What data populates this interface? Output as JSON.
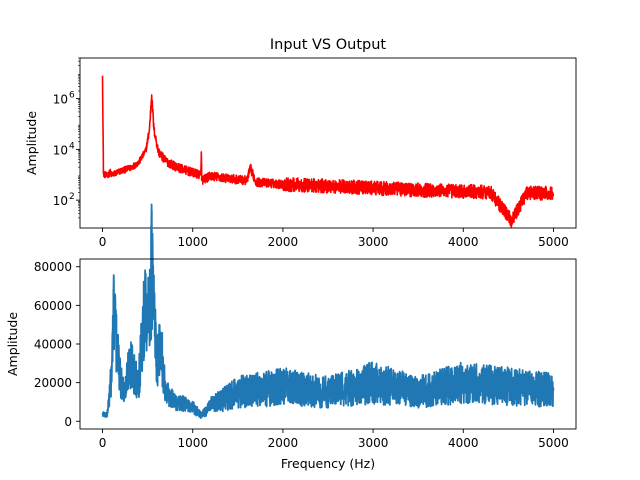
{
  "chart_data": [
    {
      "type": "line",
      "title": "Input VS Output",
      "xlabel": "",
      "ylabel": "Amplitude",
      "yscale": "log",
      "xlim": [
        -250,
        5250
      ],
      "ylim": [
        8,
        40000000
      ],
      "x_ticks": [
        "0",
        "1000",
        "2000",
        "3000",
        "4000",
        "5000"
      ],
      "y_ticks": [
        {
          "base": "10",
          "exp": "2",
          "value": 100
        },
        {
          "base": "10",
          "exp": "4",
          "value": 10000
        },
        {
          "base": "10",
          "exp": "6",
          "value": 1000000
        }
      ],
      "color": "#ff0000",
      "series": [
        {
          "values": [
            [
              0,
              8000000
            ],
            [
              10,
              1100
            ],
            [
              50,
              900
            ],
            [
              90,
              1300
            ],
            [
              100,
              1000
            ],
            [
              200,
              1400
            ],
            [
              300,
              1800
            ],
            [
              400,
              3000
            ],
            [
              480,
              9000
            ],
            [
              520,
              60000
            ],
            [
              545,
              1400000
            ],
            [
              570,
              60000
            ],
            [
              620,
              8000
            ],
            [
              700,
              3500
            ],
            [
              800,
              2200
            ],
            [
              900,
              1600
            ],
            [
              1000,
              1200
            ],
            [
              1090,
              1000
            ],
            [
              1095,
              8000
            ],
            [
              1100,
              600
            ],
            [
              1200,
              900
            ],
            [
              1400,
              700
            ],
            [
              1600,
              600
            ],
            [
              1640,
              1800
            ],
            [
              1700,
              520
            ],
            [
              2000,
              420
            ],
            [
              2300,
              380
            ],
            [
              2600,
              350
            ],
            [
              3000,
              300
            ],
            [
              3400,
              260
            ],
            [
              3700,
              240
            ],
            [
              4000,
              220
            ],
            [
              4300,
              210
            ],
            [
              4540,
              15
            ],
            [
              4700,
              200
            ],
            [
              5000,
              180
            ]
          ]
        }
      ],
      "grid": false
    },
    {
      "type": "line",
      "title": "",
      "xlabel": "Frequency (Hz)",
      "ylabel": "Amplitude",
      "xlim": [
        -250,
        5250
      ],
      "ylim": [
        -4000,
        84000
      ],
      "x_ticks": [
        "0",
        "1000",
        "2000",
        "3000",
        "4000",
        "5000"
      ],
      "y_ticks": [
        "0",
        "20000",
        "40000",
        "60000",
        "80000"
      ],
      "color": "#1f77b4",
      "series": [
        {
          "values": [
            [
              0,
              4000
            ],
            [
              50,
              3000
            ],
            [
              80,
              15000
            ],
            [
              100,
              25000
            ],
            [
              130,
              63500
            ],
            [
              150,
              42000
            ],
            [
              200,
              20000
            ],
            [
              250,
              15000
            ],
            [
              300,
              32000
            ],
            [
              350,
              25000
            ],
            [
              400,
              20000
            ],
            [
              480,
              65000
            ],
            [
              510,
              50000
            ],
            [
              545,
              80000
            ],
            [
              600,
              30000
            ],
            [
              650,
              38000
            ],
            [
              700,
              15000
            ],
            [
              800,
              10000
            ],
            [
              900,
              9000
            ],
            [
              1000,
              7000
            ],
            [
              1100,
              3000
            ],
            [
              1200,
              8000
            ],
            [
              1500,
              15000
            ],
            [
              2000,
              18000
            ],
            [
              2500,
              15000
            ],
            [
              3000,
              20000
            ],
            [
              3500,
              15000
            ],
            [
              4000,
              20000
            ],
            [
              4500,
              18000
            ],
            [
              5000,
              16000
            ]
          ]
        }
      ],
      "grid": false
    }
  ]
}
